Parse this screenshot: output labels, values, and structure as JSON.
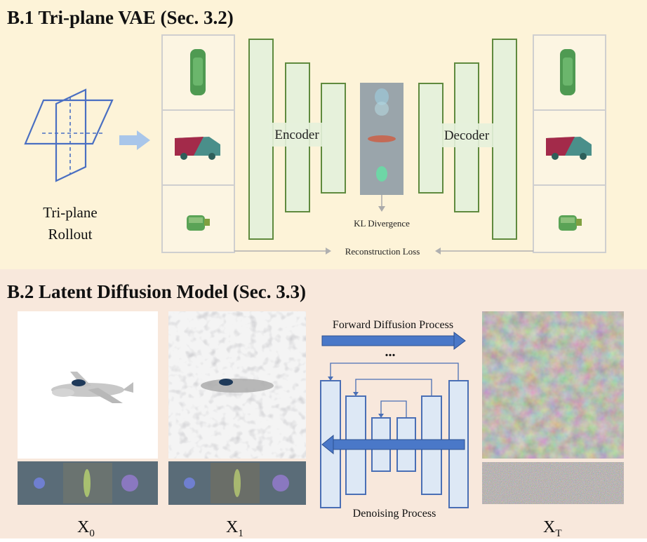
{
  "section1": {
    "heading": "B.1  Tri-plane VAE (Sec. 3.2)",
    "rollout_label_line1": "Tri-plane",
    "rollout_label_line2": "Rollout",
    "encoder_label": "Encoder",
    "decoder_label": "Decoder",
    "kl_label": "KL Divergence",
    "recon_label": "Reconstruction Loss"
  },
  "section2": {
    "heading": "B.2  Latent Diffusion Model (Sec. 3.3)",
    "forward_label": "Forward Diffusion Process",
    "ellipsis": "...",
    "denoise_label": "Denoising Process",
    "x0_base": "X",
    "x0_sub": "0",
    "x1_base": "X",
    "x1_sub": "1",
    "xt_base": "X",
    "xt_sub": "T"
  },
  "colors": {
    "section1_bg": "#fdf3d8",
    "section2_bg": "#f8e8dc",
    "encoder_fill": "#e6f1db",
    "encoder_stroke": "#5f8a3e",
    "unet_fill": "#dde8f5",
    "unet_stroke": "#4a6fb5",
    "arrow_blue": "#3f66b8",
    "triplane_blue": "#4a6fc2"
  }
}
